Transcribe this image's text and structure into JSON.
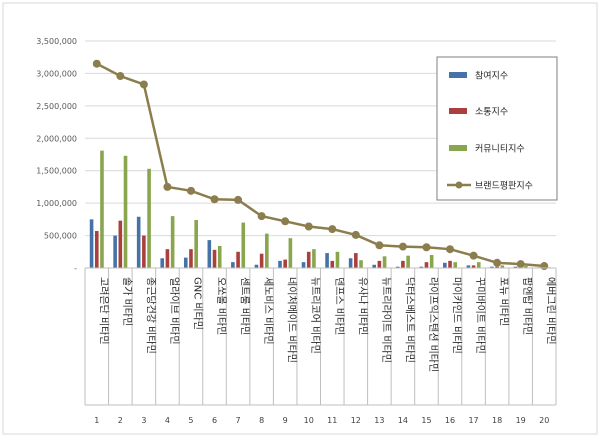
{
  "chart_data": {
    "type": "bar",
    "subtype": "combo-bar-line",
    "ylim": [
      0,
      3500000
    ],
    "yticks": [
      "-",
      "500,000",
      "1,000,000",
      "1,500,000",
      "2,000,000",
      "2,500,000",
      "3,000,000",
      "3,500,000"
    ],
    "grid": true,
    "legend_position": "top-right",
    "legend": [
      "참여지수",
      "소통지수",
      "커뮤니티지수",
      "브랜드평판지수"
    ],
    "colors": {
      "participation": "#4572a7",
      "communication": "#aa3f3c",
      "community": "#89a54e",
      "reputation": "#8b7d4d"
    },
    "ranks": [
      "1",
      "2",
      "3",
      "4",
      "5",
      "6",
      "7",
      "8",
      "9",
      "10",
      "11",
      "12",
      "13",
      "14",
      "15",
      "16",
      "17",
      "18",
      "19",
      "20"
    ],
    "categories": [
      "고려은단 비타민",
      "솔가 비타민",
      "종근당건강 비타민",
      "얼라이브 비타민",
      "GNC 비타민",
      "오쏘몰 비타민",
      "센트룸 비타민",
      "세노비스 비타민",
      "네이처메이드 비타민",
      "뉴트리코어 비타민",
      "덴프스 비타민",
      "유사나 비타민",
      "뉴트리라이트 비타민",
      "닥터스베스트 비타민",
      "라이프익스텐션 비타민",
      "마이카인드 비타민",
      "꾸미바이트 비타민",
      "포뉴 비타민",
      "팝엔탑 비타민",
      "에버그린 비타민"
    ],
    "series": [
      {
        "name": "참여지수",
        "type": "bar",
        "values": [
          750000,
          500000,
          790000,
          150000,
          160000,
          430000,
          90000,
          50000,
          110000,
          90000,
          230000,
          150000,
          50000,
          20000,
          20000,
          80000,
          40000,
          20000,
          20000,
          10000
        ]
      },
      {
        "name": "소통지수",
        "type": "bar",
        "values": [
          570000,
          730000,
          500000,
          290000,
          290000,
          280000,
          250000,
          220000,
          130000,
          250000,
          110000,
          230000,
          110000,
          110000,
          90000,
          110000,
          40000,
          20000,
          10000,
          10000
        ]
      },
      {
        "name": "커뮤니티지수",
        "type": "bar",
        "values": [
          1810000,
          1730000,
          1530000,
          800000,
          740000,
          340000,
          700000,
          530000,
          460000,
          290000,
          250000,
          120000,
          180000,
          190000,
          200000,
          90000,
          90000,
          40000,
          30000,
          10000
        ]
      },
      {
        "name": "브랜드평판지수",
        "type": "line",
        "values": [
          3150000,
          2960000,
          2830000,
          1250000,
          1190000,
          1060000,
          1050000,
          800000,
          720000,
          640000,
          600000,
          510000,
          350000,
          330000,
          320000,
          290000,
          190000,
          80000,
          60000,
          30000
        ]
      }
    ]
  }
}
